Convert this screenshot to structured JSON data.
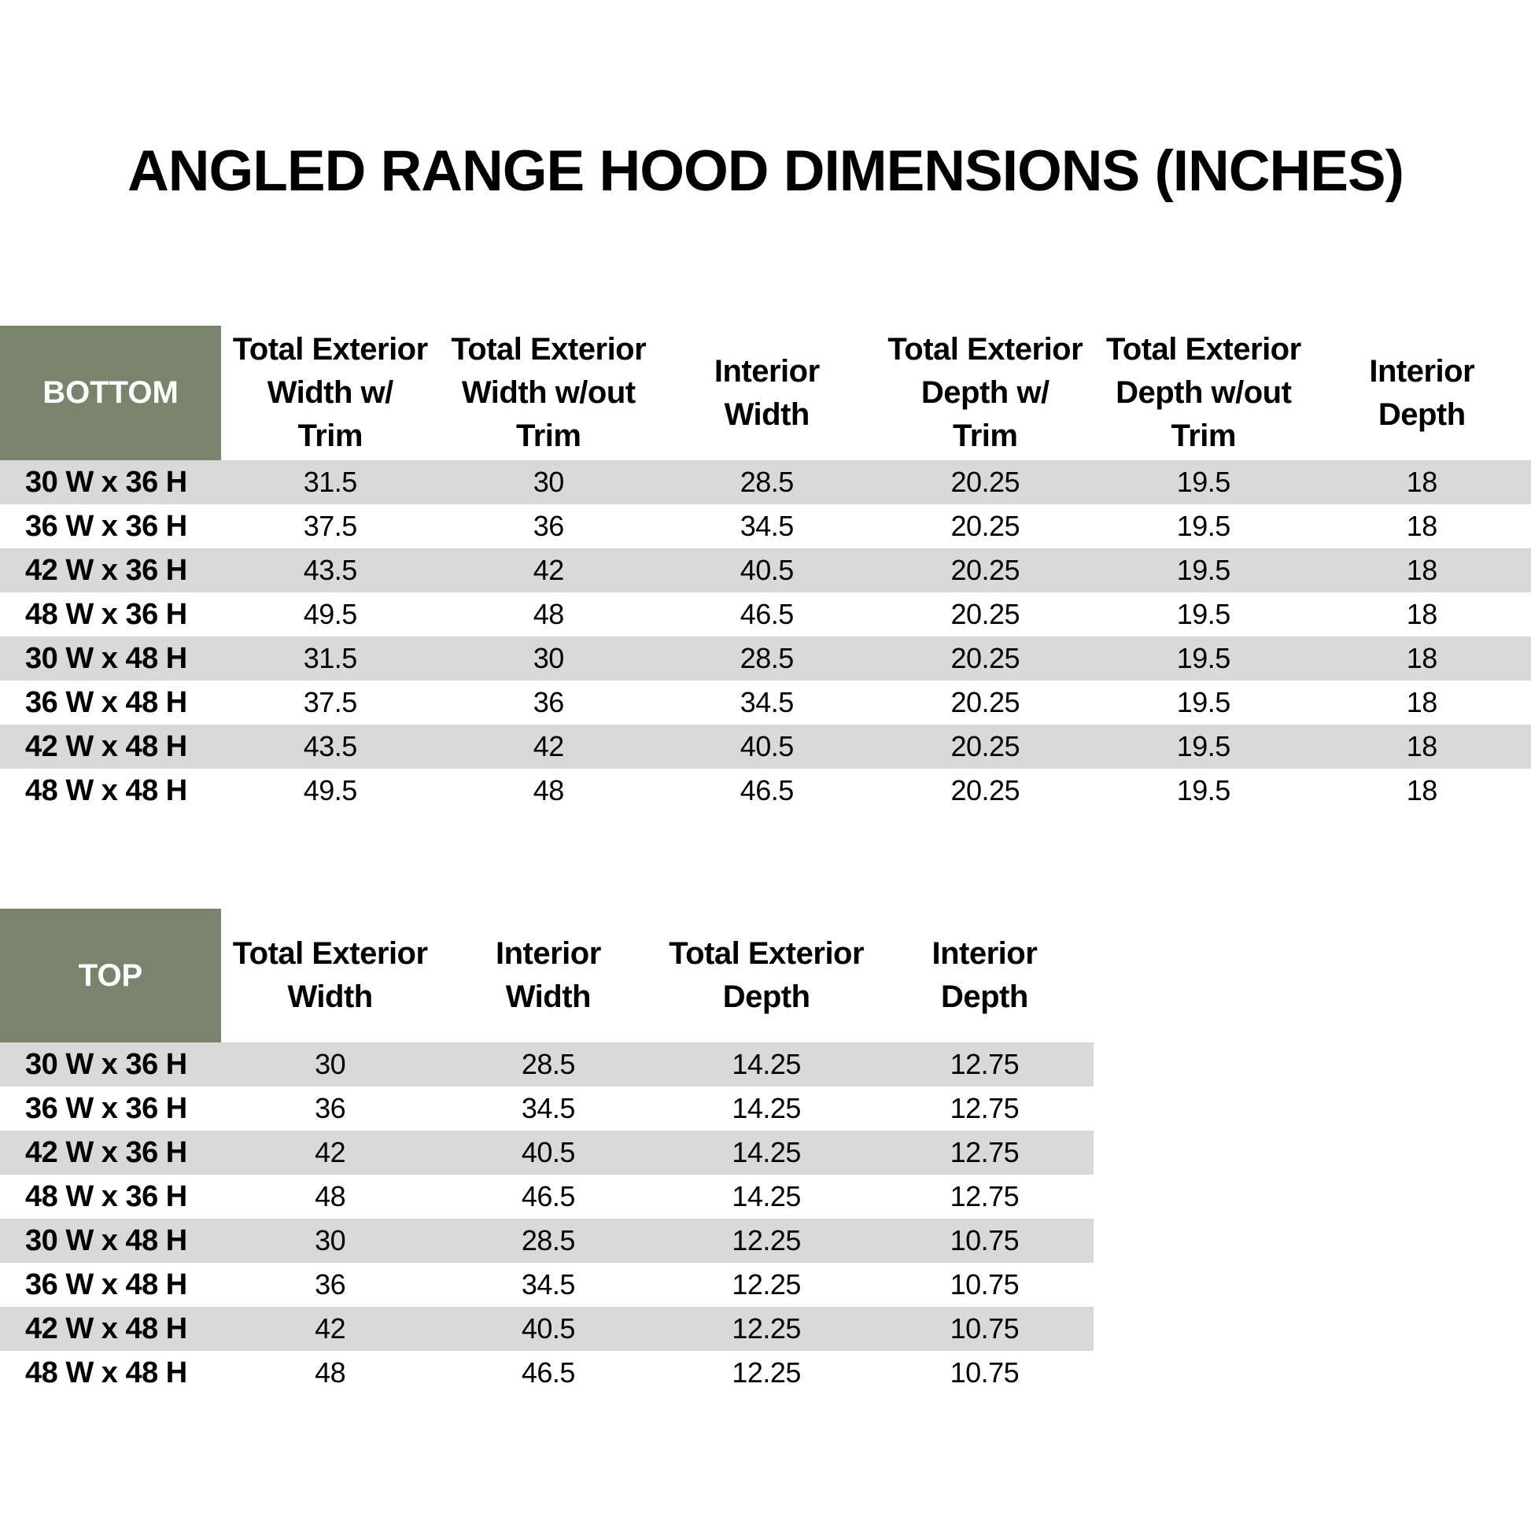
{
  "page": {
    "title": "ANGLED RANGE HOOD DIMENSIONS (INCHES)"
  },
  "colors": {
    "header_green": "#7A836B",
    "row_gray": "#D9D9D9",
    "row_white": "#FFFFFF",
    "text_black": "#000000",
    "corner_text": "#FFFFFF"
  },
  "bottom_table": {
    "corner_label": "BOTTOM",
    "columns": [
      "Total Exterior\nWidth w/\nTrim",
      "Total Exterior\nWidth w/out\nTrim",
      "Interior\nWidth",
      "Total Exterior\nDepth w/\nTrim",
      "Total Exterior\nDepth w/out\nTrim",
      "Interior\nDepth"
    ],
    "rows": [
      {
        "label": "30 W x 36 H",
        "values": [
          "31.5",
          "30",
          "28.5",
          "20.25",
          "19.5",
          "18"
        ]
      },
      {
        "label": "36 W x 36 H",
        "values": [
          "37.5",
          "36",
          "34.5",
          "20.25",
          "19.5",
          "18"
        ]
      },
      {
        "label": "42 W x 36 H",
        "values": [
          "43.5",
          "42",
          "40.5",
          "20.25",
          "19.5",
          "18"
        ]
      },
      {
        "label": "48 W x 36 H",
        "values": [
          "49.5",
          "48",
          "46.5",
          "20.25",
          "19.5",
          "18"
        ]
      },
      {
        "label": "30 W x 48 H",
        "values": [
          "31.5",
          "30",
          "28.5",
          "20.25",
          "19.5",
          "18"
        ]
      },
      {
        "label": "36 W x 48 H",
        "values": [
          "37.5",
          "36",
          "34.5",
          "20.25",
          "19.5",
          "18"
        ]
      },
      {
        "label": "42 W x 48 H",
        "values": [
          "43.5",
          "42",
          "40.5",
          "20.25",
          "19.5",
          "18"
        ]
      },
      {
        "label": "48 W x 48 H",
        "values": [
          "49.5",
          "48",
          "46.5",
          "20.25",
          "19.5",
          "18"
        ]
      }
    ]
  },
  "top_table": {
    "corner_label": "TOP",
    "columns": [
      "Total Exterior\nWidth",
      "Interior\nWidth",
      "Total Exterior\nDepth",
      "Interior\nDepth"
    ],
    "rows": [
      {
        "label": "30 W x 36 H",
        "values": [
          "30",
          "28.5",
          "14.25",
          "12.75"
        ]
      },
      {
        "label": "36 W x 36 H",
        "values": [
          "36",
          "34.5",
          "14.25",
          "12.75"
        ]
      },
      {
        "label": "42 W x 36 H",
        "values": [
          "42",
          "40.5",
          "14.25",
          "12.75"
        ]
      },
      {
        "label": "48 W x 36 H",
        "values": [
          "48",
          "46.5",
          "14.25",
          "12.75"
        ]
      },
      {
        "label": "30 W x 48 H",
        "values": [
          "30",
          "28.5",
          "12.25",
          "10.75"
        ]
      },
      {
        "label": "36 W x 48 H",
        "values": [
          "36",
          "34.5",
          "12.25",
          "10.75"
        ]
      },
      {
        "label": "42 W x 48 H",
        "values": [
          "42",
          "40.5",
          "12.25",
          "10.75"
        ]
      },
      {
        "label": "48 W x 48 H",
        "values": [
          "48",
          "46.5",
          "12.25",
          "10.75"
        ]
      }
    ]
  }
}
